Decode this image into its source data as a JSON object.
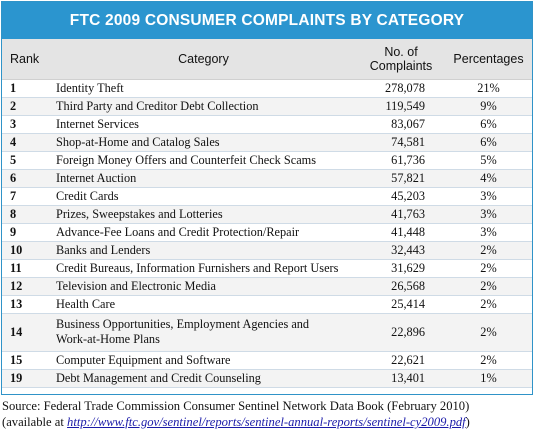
{
  "title": "FTC 2009 CONSUMER COMPLAINTS BY CATEGORY",
  "headers": {
    "rank": "Rank",
    "category": "Category",
    "complaints_line1": "No. of",
    "complaints_line2": "Complaints",
    "percentages": "Percentages"
  },
  "rows": [
    {
      "rank": "1",
      "category": "Identity Theft",
      "complaints": "278,078",
      "pct": "21%"
    },
    {
      "rank": "2",
      "category": "Third Party and Creditor Debt Collection",
      "complaints": "119,549",
      "pct": "9%"
    },
    {
      "rank": "3",
      "category": "Internet Services",
      "complaints": "83,067",
      "pct": "6%"
    },
    {
      "rank": "4",
      "category": "Shop-at-Home and Catalog Sales",
      "complaints": "74,581",
      "pct": "6%"
    },
    {
      "rank": "5",
      "category": "Foreign Money Offers and Counterfeit Check Scams",
      "complaints": "61,736",
      "pct": "5%"
    },
    {
      "rank": "6",
      "category": "Internet Auction",
      "complaints": "57,821",
      "pct": "4%"
    },
    {
      "rank": "7",
      "category": "Credit Cards",
      "complaints": "45,203",
      "pct": "3%"
    },
    {
      "rank": "8",
      "category": "Prizes, Sweepstakes and Lotteries",
      "complaints": "41,763",
      "pct": "3%"
    },
    {
      "rank": "9",
      "category": "Advance-Fee Loans and Credit Protection/Repair",
      "complaints": "41,448",
      "pct": "3%"
    },
    {
      "rank": "10",
      "category": "Banks and Lenders",
      "complaints": "32,443",
      "pct": "2%"
    },
    {
      "rank": "11",
      "category": "Credit Bureaus, Information Furnishers and Report Users",
      "complaints": "31,629",
      "pct": "2%"
    },
    {
      "rank": "12",
      "category": "Television and Electronic Media",
      "complaints": "26,568",
      "pct": "2%"
    },
    {
      "rank": "13",
      "category": "Health Care",
      "complaints": "25,414",
      "pct": "2%"
    },
    {
      "rank": "14",
      "category_line1": "Business Opportunities, Employment Agencies and",
      "category_line2": "Work-at-Home Plans",
      "complaints": "22,896",
      "pct": "2%"
    },
    {
      "rank": "15",
      "category": "Computer Equipment and Software",
      "complaints": "22,621",
      "pct": "2%"
    },
    {
      "rank": "19",
      "category": "Debt Management and Credit Counseling",
      "complaints": "13,401",
      "pct": "1%"
    }
  ],
  "source": {
    "line1": "Source: Federal Trade Commission Consumer Sentinel Network Data Book (February 2010)",
    "line2_prefix": "(available at ",
    "link_text": "http://www.ftc.gov/sentinel/reports/sentinel-annual-reports/sentinel-cy2009.pdf",
    "line2_suffix": ")"
  }
}
